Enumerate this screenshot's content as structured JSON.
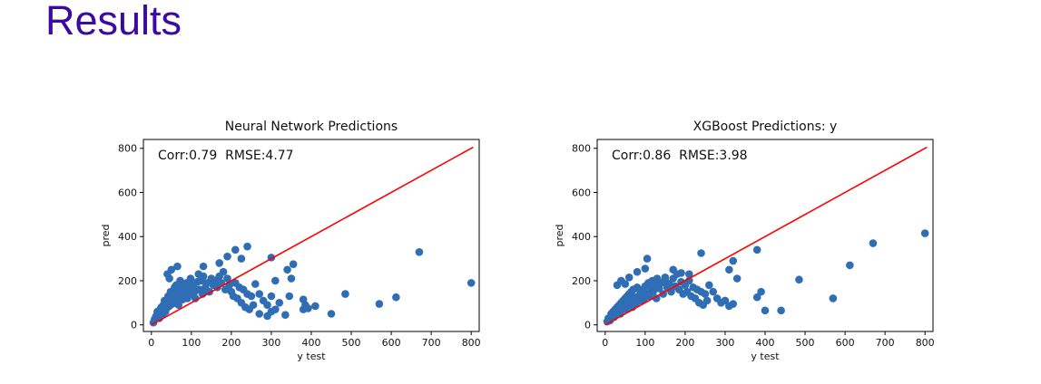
{
  "page": {
    "title": "Results"
  },
  "chart_data": [
    {
      "type": "scatter",
      "title": "Neural Network Predictions",
      "xlabel": "y test",
      "ylabel": "pred",
      "annotation": "Corr:0.79  RMSE:4.77",
      "xlim": [
        -20,
        820
      ],
      "ylim": [
        -30,
        840
      ],
      "xticks": [
        0,
        100,
        200,
        300,
        400,
        500,
        600,
        700,
        800
      ],
      "yticks": [
        0,
        200,
        400,
        600,
        800
      ],
      "point_color": "#2f6db5",
      "line_color": "#ff0000",
      "reference_line": [
        [
          0,
          0
        ],
        [
          805,
          805
        ]
      ],
      "points": [
        [
          5,
          10
        ],
        [
          8,
          25
        ],
        [
          12,
          40
        ],
        [
          15,
          60
        ],
        [
          18,
          55
        ],
        [
          20,
          30
        ],
        [
          22,
          70
        ],
        [
          25,
          80
        ],
        [
          28,
          45
        ],
        [
          30,
          90
        ],
        [
          33,
          110
        ],
        [
          35,
          60
        ],
        [
          38,
          75
        ],
        [
          40,
          100
        ],
        [
          42,
          130
        ],
        [
          45,
          85
        ],
        [
          48,
          150
        ],
        [
          50,
          120
        ],
        [
          52,
          95
        ],
        [
          55,
          140
        ],
        [
          58,
          170
        ],
        [
          60,
          110
        ],
        [
          62,
          180
        ],
        [
          65,
          130
        ],
        [
          68,
          90
        ],
        [
          70,
          160
        ],
        [
          72,
          200
        ],
        [
          75,
          140
        ],
        [
          78,
          115
        ],
        [
          80,
          175
        ],
        [
          85,
          150
        ],
        [
          88,
          190
        ],
        [
          90,
          120
        ],
        [
          95,
          165
        ],
        [
          98,
          210
        ],
        [
          100,
          140
        ],
        [
          105,
          180
        ],
        [
          108,
          150
        ],
        [
          110,
          120
        ],
        [
          115,
          195
        ],
        [
          118,
          230
        ],
        [
          120,
          160
        ],
        [
          125,
          200
        ],
        [
          128,
          140
        ],
        [
          130,
          220
        ],
        [
          135,
          170
        ],
        [
          140,
          190
        ],
        [
          145,
          150
        ],
        [
          150,
          210
        ],
        [
          155,
          180
        ],
        [
          160,
          200
        ],
        [
          165,
          170
        ],
        [
          170,
          220
        ],
        [
          175,
          190
        ],
        [
          180,
          240
        ],
        [
          185,
          160
        ],
        [
          190,
          210
        ],
        [
          195,
          180
        ],
        [
          200,
          150
        ],
        [
          205,
          130
        ],
        [
          210,
          190
        ],
        [
          215,
          120
        ],
        [
          220,
          170
        ],
        [
          225,
          100
        ],
        [
          230,
          160
        ],
        [
          235,
          80
        ],
        [
          240,
          140
        ],
        [
          245,
          70
        ],
        [
          250,
          130
        ],
        [
          255,
          90
        ],
        [
          40,
          230
        ],
        [
          50,
          250
        ],
        [
          45,
          210
        ],
        [
          65,
          265
        ],
        [
          130,
          265
        ],
        [
          170,
          280
        ],
        [
          190,
          310
        ],
        [
          210,
          340
        ],
        [
          225,
          300
        ],
        [
          240,
          355
        ],
        [
          260,
          185
        ],
        [
          270,
          140
        ],
        [
          280,
          110
        ],
        [
          290,
          90
        ],
        [
          300,
          130
        ],
        [
          310,
          70
        ],
        [
          320,
          100
        ],
        [
          270,
          50
        ],
        [
          290,
          40
        ],
        [
          300,
          60
        ],
        [
          345,
          130
        ],
        [
          350,
          210
        ],
        [
          340,
          250
        ],
        [
          355,
          275
        ],
        [
          300,
          305
        ],
        [
          310,
          200
        ],
        [
          335,
          45
        ],
        [
          380,
          70
        ],
        [
          385,
          90
        ],
        [
          392,
          75
        ],
        [
          380,
          115
        ],
        [
          410,
          85
        ],
        [
          450,
          50
        ],
        [
          485,
          140
        ],
        [
          570,
          95
        ],
        [
          612,
          125
        ],
        [
          670,
          330
        ],
        [
          800,
          190
        ]
      ]
    },
    {
      "type": "scatter",
      "title": "XGBoost Predictions: y",
      "xlabel": "y test",
      "ylabel": "pred",
      "annotation": "Corr:0.86  RMSE:3.98",
      "xlim": [
        -20,
        820
      ],
      "ylim": [
        -30,
        840
      ],
      "xticks": [
        0,
        100,
        200,
        300,
        400,
        500,
        600,
        700,
        800
      ],
      "yticks": [
        0,
        200,
        400,
        600,
        800
      ],
      "point_color": "#2f6db5",
      "line_color": "#ff0000",
      "reference_line": [
        [
          0,
          0
        ],
        [
          805,
          805
        ]
      ],
      "points": [
        [
          5,
          15
        ],
        [
          8,
          30
        ],
        [
          12,
          20
        ],
        [
          15,
          50
        ],
        [
          18,
          40
        ],
        [
          20,
          60
        ],
        [
          22,
          35
        ],
        [
          25,
          70
        ],
        [
          28,
          55
        ],
        [
          30,
          80
        ],
        [
          33,
          65
        ],
        [
          35,
          90
        ],
        [
          38,
          50
        ],
        [
          40,
          100
        ],
        [
          42,
          75
        ],
        [
          45,
          110
        ],
        [
          48,
          85
        ],
        [
          50,
          120
        ],
        [
          52,
          70
        ],
        [
          55,
          130
        ],
        [
          58,
          95
        ],
        [
          60,
          140
        ],
        [
          62,
          105
        ],
        [
          65,
          150
        ],
        [
          68,
          80
        ],
        [
          70,
          160
        ],
        [
          72,
          115
        ],
        [
          75,
          125
        ],
        [
          78,
          100
        ],
        [
          80,
          170
        ],
        [
          85,
          130
        ],
        [
          88,
          145
        ],
        [
          90,
          110
        ],
        [
          95,
          160
        ],
        [
          98,
          120
        ],
        [
          100,
          175
        ],
        [
          105,
          140
        ],
        [
          108,
          190
        ],
        [
          110,
          130
        ],
        [
          115,
          160
        ],
        [
          118,
          200
        ],
        [
          120,
          150
        ],
        [
          125,
          180
        ],
        [
          128,
          120
        ],
        [
          130,
          210
        ],
        [
          135,
          165
        ],
        [
          140,
          190
        ],
        [
          145,
          140
        ],
        [
          150,
          200
        ],
        [
          155,
          170
        ],
        [
          160,
          185
        ],
        [
          165,
          150
        ],
        [
          170,
          210
        ],
        [
          175,
          175
        ],
        [
          180,
          230
        ],
        [
          185,
          160
        ],
        [
          190,
          195
        ],
        [
          195,
          140
        ],
        [
          200,
          180
        ],
        [
          205,
          150
        ],
        [
          210,
          200
        ],
        [
          215,
          130
        ],
        [
          220,
          170
        ],
        [
          225,
          120
        ],
        [
          230,
          160
        ],
        [
          235,
          100
        ],
        [
          240,
          150
        ],
        [
          245,
          90
        ],
        [
          250,
          140
        ],
        [
          255,
          110
        ],
        [
          30,
          180
        ],
        [
          40,
          200
        ],
        [
          50,
          185
        ],
        [
          60,
          215
        ],
        [
          80,
          240
        ],
        [
          100,
          255
        ],
        [
          105,
          300
        ],
        [
          130,
          205
        ],
        [
          150,
          215
        ],
        [
          170,
          250
        ],
        [
          190,
          235
        ],
        [
          210,
          230
        ],
        [
          240,
          325
        ],
        [
          260,
          180
        ],
        [
          270,
          150
        ],
        [
          280,
          120
        ],
        [
          290,
          100
        ],
        [
          300,
          110
        ],
        [
          310,
          85
        ],
        [
          320,
          95
        ],
        [
          330,
          210
        ],
        [
          320,
          290
        ],
        [
          310,
          250
        ],
        [
          380,
          340
        ],
        [
          390,
          150
        ],
        [
          380,
          125
        ],
        [
          400,
          65
        ],
        [
          440,
          65
        ],
        [
          485,
          205
        ],
        [
          570,
          120
        ],
        [
          612,
          270
        ],
        [
          670,
          370
        ],
        [
          800,
          415
        ]
      ]
    }
  ]
}
